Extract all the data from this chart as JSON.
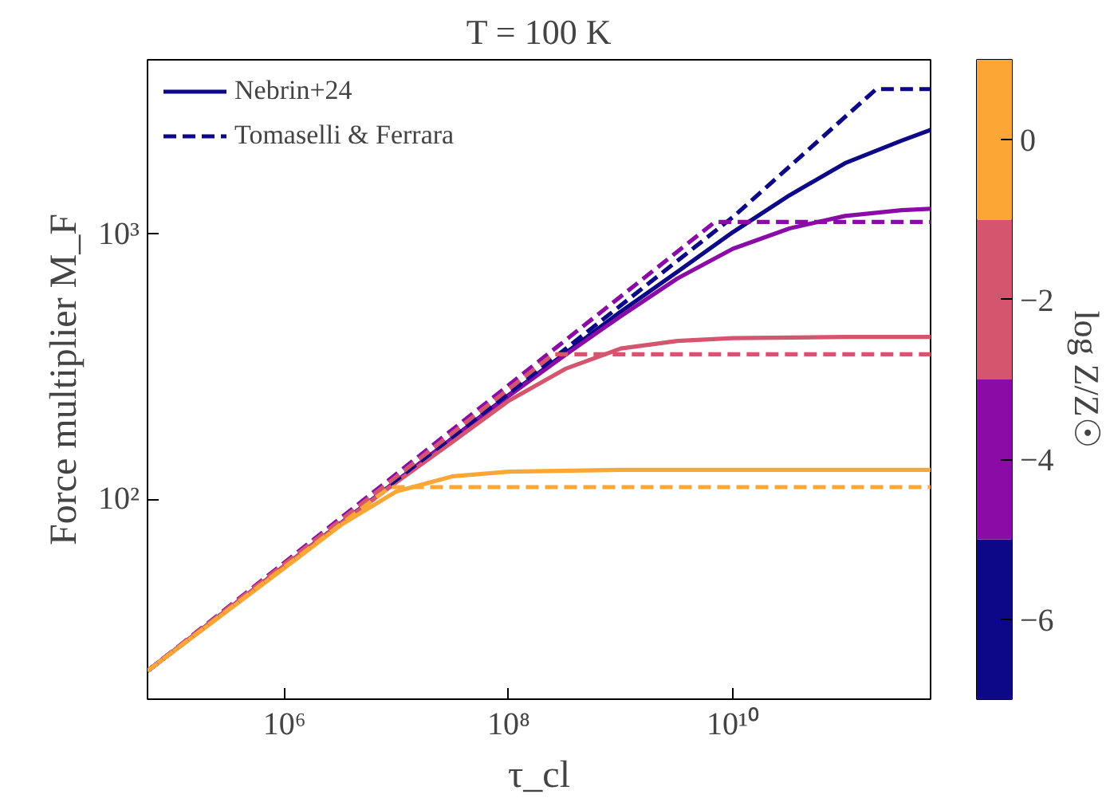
{
  "chart_data": {
    "type": "line",
    "title": "T = 100 K",
    "xlabel": "τ_cl",
    "ylabel": "Force multiplier M_F",
    "clabel": "log Z/Z☉",
    "log": "xy",
    "grid": false,
    "legend": "top left",
    "xlim": [
      60000,
      580000000000
    ],
    "ylim": [
      17.6,
      4540
    ],
    "xticks": [
      {
        "value": 1000000,
        "label": "10⁶"
      },
      {
        "value": 100000000,
        "label": "10⁸"
      },
      {
        "value": 10000000000,
        "label": "10¹⁰"
      }
    ],
    "yticks": [
      {
        "value": 100,
        "label": "10²"
      },
      {
        "value": 1000,
        "label": "10³"
      }
    ],
    "clim": [
      -7,
      1
    ],
    "cticks": [
      0,
      -2,
      -4,
      -6
    ],
    "series": [
      {
        "name": "Nebrin+24",
        "color": "#0d0887",
        "line_style": "solid",
        "x": [
          60000,
          1000000,
          10000000,
          100000000,
          320000000,
          1000000000,
          3200000000,
          10000000000,
          32000000000,
          100000000000,
          320000000000,
          580000000000
        ],
        "values": [
          22.5,
          56,
          117,
          247,
          355,
          510,
          720,
          1016,
          1400,
          1850,
          2250,
          2470
        ]
      },
      {
        "color": "#8a0ba5",
        "line_style": "solid",
        "x": [
          60000,
          1000000,
          10000000,
          100000000,
          320000000,
          1000000000,
          3200000000,
          10000000000,
          32000000000,
          100000000000,
          320000000000,
          580000000000
        ],
        "values": [
          22.5,
          56,
          117,
          245,
          350,
          490,
          680,
          880,
          1050,
          1170,
          1230,
          1245
        ]
      },
      {
        "color": "#d5546e",
        "line_style": "solid",
        "x": [
          60000,
          1000000,
          10000000,
          32000000,
          100000000,
          320000000,
          1000000000,
          3200000000,
          10000000000,
          100000000000,
          580000000000
        ],
        "values": [
          22.5,
          56,
          116,
          165,
          235,
          310,
          370,
          395,
          405,
          409,
          409
        ]
      },
      {
        "color": "#fca636",
        "line_style": "solid",
        "x": [
          60000,
          1000000,
          3200000,
          10000000,
          32000000,
          100000000,
          1000000000,
          580000000000
        ],
        "values": [
          22.5,
          55,
          80,
          107,
          122,
          127,
          129,
          129
        ]
      },
      {
        "name": "Tomaselli & Ferrara",
        "color": "#0d0887",
        "line_style": "dashed",
        "x": [
          60000,
          100000000,
          10000000000,
          190000000000,
          580000000000
        ],
        "values": [
          22.5,
          250,
          1158,
          3520,
          3520
        ]
      },
      {
        "color": "#8a0ba5",
        "line_style": "dashed",
        "x": [
          60000,
          6900000000,
          580000000000
        ],
        "values": [
          22.5,
          1110,
          1110
        ]
      },
      {
        "color": "#d5546e",
        "line_style": "dashed",
        "x": [
          60000,
          250000000,
          580000000000
        ],
        "values": [
          22.5,
          352,
          352
        ]
      },
      {
        "color": "#fca636",
        "line_style": "dashed",
        "x": [
          60000,
          8700000,
          580000000000
        ],
        "values": [
          22.5,
          111,
          111
        ]
      }
    ]
  }
}
